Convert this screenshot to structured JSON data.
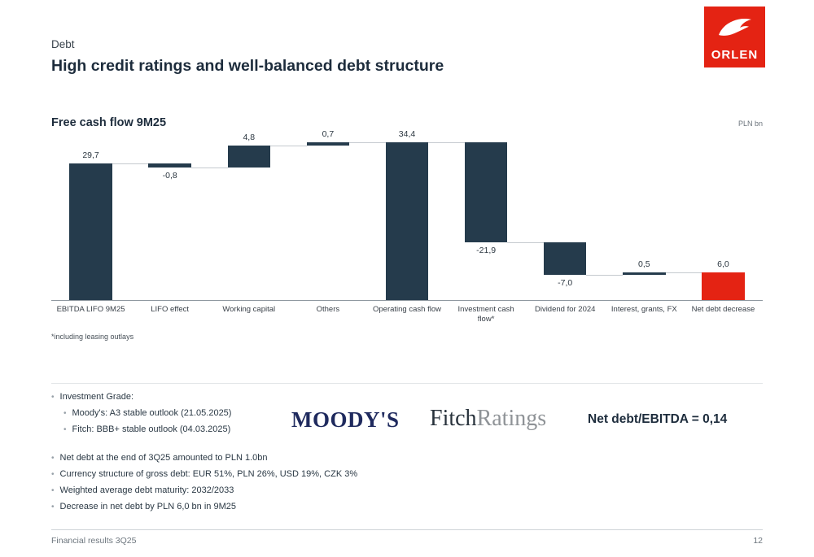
{
  "logo": {
    "text": "ORLEN",
    "color": "#e42313"
  },
  "header": {
    "eyebrow": "Debt",
    "title": "High credit ratings and well-balanced debt structure"
  },
  "chart": {
    "heading": "Free cash flow 9M25",
    "unit": "PLN bn",
    "footnote": "*including leasing outlays"
  },
  "chart_data": {
    "type": "bar",
    "subtype": "waterfall",
    "title": "Free cash flow 9M25",
    "ylabel": "PLN bn",
    "categories": [
      "EBITDA LIFO 9M25",
      "LIFO effect",
      "Working capital",
      "Others",
      "Operating cash flow",
      "Investment cash flow*",
      "Dividend for 2024",
      "Interest, grants, FX",
      "Net debt decrease"
    ],
    "values": [
      29.7,
      -0.8,
      4.8,
      0.7,
      34.4,
      -21.9,
      -7.0,
      0.5,
      6.0
    ],
    "labels": [
      "29,7",
      "-0,8",
      "4,8",
      "0,7",
      "34,4",
      "-21,9",
      "-7,0",
      "0,5",
      "6,0"
    ],
    "bar_types": [
      "absolute",
      "delta",
      "delta",
      "delta",
      "absolute",
      "delta",
      "delta",
      "delta",
      "absolute"
    ],
    "bar_colors": [
      "#253b4c",
      "#253b4c",
      "#253b4c",
      "#253b4c",
      "#253b4c",
      "#253b4c",
      "#253b4c",
      "#253b4c",
      "#e42313"
    ],
    "ylim": [
      0,
      36.5
    ],
    "grid": false,
    "legend": false
  },
  "investment_grade": {
    "title": "Investment Grade:",
    "items": [
      "Moody's: A3 stable outlook (21.05.2025)",
      "Fitch: BBB+ stable outlook (04.03.2025)"
    ]
  },
  "ratings": {
    "moodys": "MOODY'S",
    "fitch_1": "Fitch",
    "fitch_2": "Ratings",
    "net_debt_ebitda": "Net debt/EBITDA = 0,14"
  },
  "bullets": [
    "Net debt at the end of 3Q25 amounted to PLN 1.0bn",
    "Currency structure of gross debt: EUR 51%, PLN 26%, USD 19%, CZK 3%",
    "Weighted average debt maturity: 2032/2033",
    "Decrease in net debt by PLN 6,0 bn in 9M25"
  ],
  "footer": {
    "left": "Financial results 3Q25",
    "page": "12"
  }
}
